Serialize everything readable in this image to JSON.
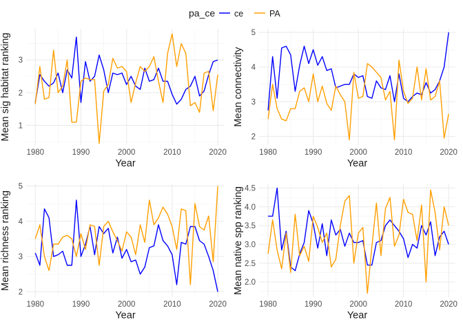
{
  "legend": {
    "title": "pa_ce",
    "entries": [
      {
        "name": "ce",
        "color": "#0000ff"
      },
      {
        "name": "PA",
        "color": "#ff9f00"
      }
    ],
    "position": "top"
  },
  "chart_data": [
    {
      "type": "line",
      "ylabel": "Mean sig habitat ranking",
      "xlabel": "Year",
      "xlim": [
        1978,
        2021.5
      ],
      "ylim": [
        0.4,
        3.95
      ],
      "xticks": [
        1980,
        1990,
        2000,
        2010,
        2020
      ],
      "yticks": [
        1,
        2,
        3
      ],
      "grid": true,
      "x": [
        1980,
        1981,
        1982,
        1983,
        1984,
        1985,
        1986,
        1987,
        1988,
        1989,
        1990,
        1991,
        1992,
        1993,
        1994,
        1995,
        1996,
        1997,
        1998,
        1999,
        2000,
        2001,
        2002,
        2003,
        2004,
        2005,
        2006,
        2007,
        2008,
        2009,
        2010,
        2011,
        2012,
        2013,
        2014,
        2015,
        2016,
        2017,
        2018,
        2019,
        2020
      ],
      "series": [
        {
          "name": "ce",
          "values": [
            1.7,
            2.55,
            2.35,
            2.2,
            2.3,
            2.6,
            2.0,
            2.7,
            2.45,
            3.7,
            1.7,
            2.95,
            2.35,
            2.5,
            3.15,
            2.7,
            2.0,
            2.6,
            2.55,
            2.6,
            2.25,
            2.5,
            2.2,
            2.1,
            2.75,
            2.35,
            2.4,
            2.75,
            2.35,
            2.35,
            1.95,
            1.65,
            1.8,
            2.1,
            2.2,
            2.5,
            1.9,
            2.05,
            2.55,
            2.95,
            3.0
          ]
        },
        {
          "name": "PA",
          "values": [
            1.65,
            2.8,
            1.8,
            1.85,
            3.3,
            2.0,
            2.2,
            3.0,
            1.1,
            1.1,
            2.35,
            2.45,
            2.4,
            2.4,
            0.45,
            2.05,
            2.25,
            3.05,
            2.75,
            2.8,
            2.65,
            1.7,
            2.3,
            2.8,
            2.65,
            2.8,
            3.1,
            2.35,
            1.7,
            3.2,
            3.8,
            2.8,
            3.5,
            3.2,
            1.6,
            1.7,
            1.4,
            2.6,
            2.65,
            1.45,
            2.55
          ]
        }
      ]
    },
    {
      "type": "line",
      "ylabel": "Mean connectivity",
      "xlabel": "Year",
      "xlim": [
        1978,
        2021.5
      ],
      "ylim": [
        1.75,
        5.1
      ],
      "xticks": [
        1980,
        1990,
        2000,
        2010,
        2020
      ],
      "yticks": [
        2,
        3,
        4,
        5
      ],
      "grid": true,
      "x": [
        1980,
        1981,
        1982,
        1983,
        1984,
        1985,
        1986,
        1987,
        1988,
        1989,
        1990,
        1991,
        1992,
        1993,
        1994,
        1995,
        1996,
        1997,
        1998,
        1999,
        2000,
        2001,
        2002,
        2003,
        2004,
        2005,
        2006,
        2007,
        2008,
        2009,
        2010,
        2011,
        2012,
        2013,
        2014,
        2015,
        2016,
        2017,
        2018,
        2019,
        2020
      ],
      "series": [
        {
          "name": "ce",
          "values": [
            2.75,
            4.3,
            3.1,
            4.55,
            4.6,
            4.35,
            3.3,
            4.05,
            4.6,
            4.1,
            4.5,
            4.05,
            4.3,
            3.9,
            3.95,
            3.4,
            3.45,
            3.5,
            3.5,
            3.8,
            3.7,
            3.75,
            3.15,
            3.1,
            3.6,
            3.4,
            3.35,
            3.75,
            3.0,
            3.8,
            3.1,
            3.0,
            3.15,
            3.25,
            3.2,
            3.55,
            3.25,
            3.35,
            3.6,
            4.0,
            5.0
          ]
        },
        {
          "name": "PA",
          "values": [
            2.5,
            3.5,
            2.8,
            2.5,
            2.45,
            2.8,
            2.8,
            3.3,
            3.4,
            3.0,
            3.8,
            3.0,
            3.45,
            2.95,
            2.75,
            3.45,
            3.2,
            3.0,
            1.9,
            3.85,
            3.1,
            3.15,
            4.1,
            4.0,
            3.85,
            3.7,
            3.05,
            3.3,
            1.9,
            4.2,
            3.3,
            2.95,
            3.1,
            4.0,
            3.05,
            3.95,
            3.05,
            3.15,
            3.6,
            1.95,
            2.65
          ]
        }
      ]
    },
    {
      "type": "line",
      "ylabel": "Mean richness ranking",
      "xlabel": "Year",
      "xlim": [
        1978,
        2021.5
      ],
      "ylim": [
        1.85,
        5.05
      ],
      "xticks": [
        1980,
        1990,
        2000,
        2010,
        2020
      ],
      "yticks": [
        2,
        3,
        4,
        5
      ],
      "grid": true,
      "x": [
        1980,
        1981,
        1982,
        1983,
        1984,
        1985,
        1986,
        1987,
        1988,
        1989,
        1990,
        1991,
        1992,
        1993,
        1994,
        1995,
        1996,
        1997,
        1998,
        1999,
        2000,
        2001,
        2002,
        2003,
        2004,
        2005,
        2006,
        2007,
        2008,
        2009,
        2010,
        2011,
        2012,
        2013,
        2014,
        2015,
        2016,
        2017,
        2018,
        2019,
        2020
      ],
      "series": [
        {
          "name": "ce",
          "values": [
            3.1,
            2.75,
            4.35,
            4.1,
            3.0,
            3.05,
            3.15,
            2.75,
            2.75,
            4.6,
            3.0,
            3.35,
            3.85,
            3.05,
            3.85,
            3.65,
            3.8,
            3.1,
            3.55,
            2.95,
            3.2,
            2.85,
            2.9,
            2.5,
            2.7,
            3.25,
            3.3,
            3.9,
            3.45,
            3.3,
            3.05,
            2.2,
            3.4,
            3.35,
            3.85,
            3.85,
            3.45,
            3.35,
            3.0,
            2.6,
            2.0
          ]
        },
        {
          "name": "PA",
          "values": [
            3.5,
            3.9,
            3.0,
            2.6,
            3.35,
            3.35,
            3.55,
            3.6,
            3.5,
            3.0,
            3.65,
            3.2,
            3.9,
            3.85,
            2.75,
            3.85,
            4.0,
            3.7,
            3.45,
            3.15,
            3.7,
            3.55,
            3.05,
            3.9,
            3.4,
            4.6,
            3.9,
            4.1,
            4.4,
            4.2,
            3.85,
            3.2,
            4.35,
            4.3,
            2.2,
            4.5,
            3.85,
            3.75,
            4.15,
            2.85,
            5.0
          ]
        }
      ]
    },
    {
      "type": "line",
      "ylabel": "Mean native spp ranking",
      "xlabel": "Year",
      "xlim": [
        1978,
        2021.5
      ],
      "ylim": [
        1.6,
        4.6
      ],
      "xticks": [
        1980,
        1990,
        2000,
        2010,
        2020
      ],
      "yticks": [
        2.0,
        2.5,
        3.0,
        3.5,
        4.0,
        4.5
      ],
      "ytick_labels": [
        "2.0",
        "2.5",
        "3.0",
        "3.5",
        "4.0",
        "4.5"
      ],
      "grid": true,
      "x": [
        1980,
        1981,
        1982,
        1983,
        1984,
        1985,
        1986,
        1987,
        1988,
        1989,
        1990,
        1991,
        1992,
        1993,
        1994,
        1995,
        1996,
        1997,
        1998,
        1999,
        2000,
        2001,
        2002,
        2003,
        2004,
        2005,
        2006,
        2007,
        2008,
        2009,
        2010,
        2011,
        2012,
        2013,
        2014,
        2015,
        2016,
        2017,
        2018,
        2019,
        2020
      ],
      "series": [
        {
          "name": "ce",
          "values": [
            3.75,
            3.75,
            4.5,
            2.85,
            3.35,
            2.4,
            2.3,
            2.75,
            3.05,
            3.9,
            3.55,
            2.9,
            3.55,
            2.7,
            3.65,
            3.25,
            3.4,
            2.95,
            3.3,
            3.05,
            3.05,
            3.1,
            2.45,
            2.45,
            3.05,
            3.1,
            3.5,
            3.65,
            3.5,
            3.35,
            3.15,
            2.65,
            3.0,
            2.9,
            3.5,
            3.25,
            3.6,
            2.7,
            3.2,
            3.35,
            3.0
          ]
        },
        {
          "name": "PA",
          "values": [
            2.75,
            3.65,
            2.85,
            2.35,
            3.3,
            2.25,
            3.8,
            2.7,
            2.95,
            2.55,
            3.75,
            3.45,
            3.05,
            3.3,
            2.4,
            2.6,
            3.5,
            4.15,
            4.3,
            2.5,
            3.3,
            3.45,
            1.7,
            2.95,
            4.1,
            2.7,
            3.95,
            4.25,
            2.95,
            3.25,
            4.2,
            3.85,
            3.8,
            3.1,
            4.05,
            2.0,
            4.45,
            3.85,
            2.85,
            4.0,
            3.5
          ]
        }
      ]
    }
  ]
}
